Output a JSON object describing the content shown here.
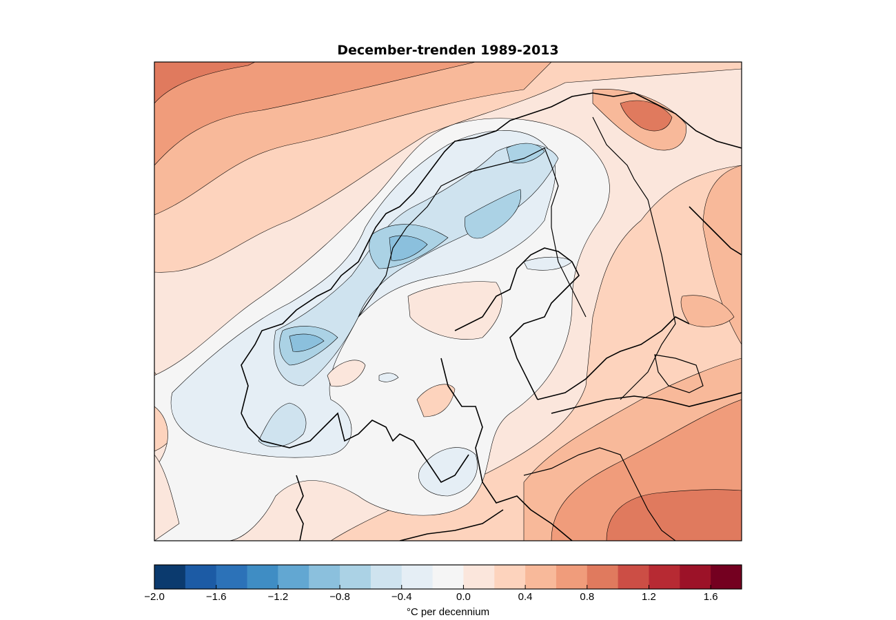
{
  "title": "December-trenden 1989-2013",
  "colorbar": {
    "label": "°C per decennium",
    "min": -2.0,
    "max": 1.8,
    "step": 0.2,
    "tick_labels": [
      "−2.0",
      "−1.6",
      "−1.2",
      "−0.8",
      "−0.4",
      "0.0",
      "0.4",
      "0.8",
      "1.2",
      "1.6"
    ],
    "tick_values": [
      -2.0,
      -1.6,
      -1.2,
      -0.8,
      -0.4,
      0.0,
      0.4,
      0.8,
      1.2,
      1.6
    ],
    "colors": [
      "#0b3a6e",
      "#1c5ba5",
      "#2c72b8",
      "#3f8dc4",
      "#62a7d2",
      "#8bc0dd",
      "#abd2e5",
      "#cfe3ef",
      "#e5eef5",
      "#f5f5f5",
      "#fbe6dc",
      "#fdd3bd",
      "#f8b99a",
      "#f09c7b",
      "#e07a5e",
      "#cc4e45",
      "#b72a33",
      "#9c1228",
      "#740020"
    ]
  },
  "map": {
    "region": "Scandinavia and Baltic region",
    "field": "December temperature trend",
    "coastline_color": "#000000"
  }
}
